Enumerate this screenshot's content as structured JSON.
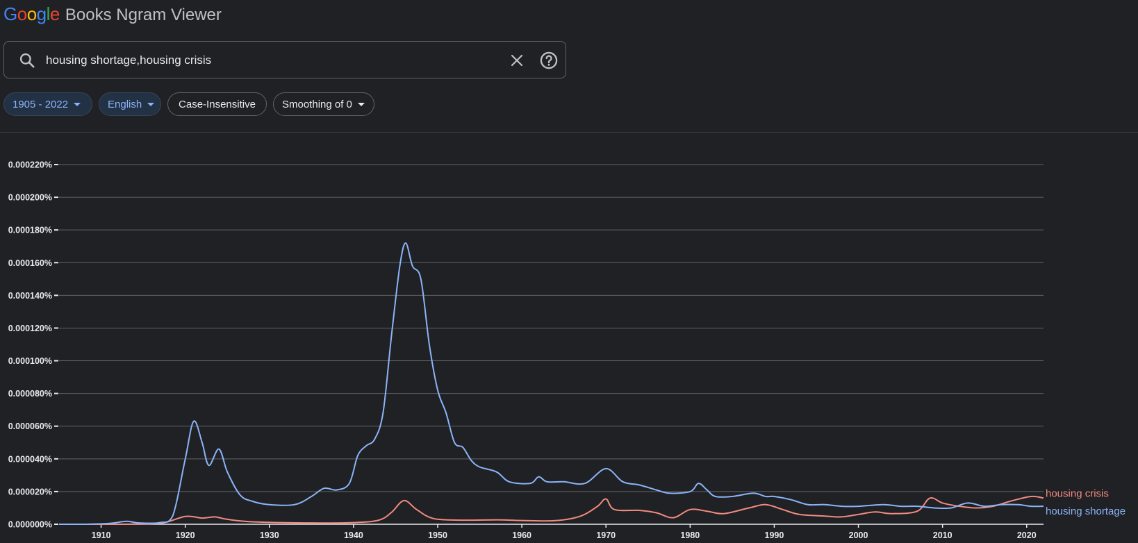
{
  "header": {
    "logo_letters": [
      "G",
      "o",
      "o",
      "g",
      "l",
      "e"
    ],
    "product_name": "Books Ngram Viewer"
  },
  "search": {
    "value": "housing shortage,housing crisis",
    "icon": "search-icon",
    "clear_icon": "close-icon",
    "help_icon": "help-icon"
  },
  "filters": {
    "year_range": "1905 - 2022",
    "corpus": "English",
    "case": "Case-Insensitive",
    "smoothing": "Smoothing of 0"
  },
  "chart_data": {
    "type": "line",
    "xlim": [
      1905,
      2022
    ],
    "ylim": [
      0,
      0.00022
    ],
    "x_ticks": [
      1910,
      1920,
      1930,
      1940,
      1950,
      1960,
      1970,
      1980,
      1990,
      2000,
      2010,
      2020
    ],
    "y_ticks": [
      {
        "value": 0,
        "label": "0.000000%"
      },
      {
        "value": 2e-05,
        "label": "0.000020%"
      },
      {
        "value": 4e-05,
        "label": "0.000040%"
      },
      {
        "value": 6e-05,
        "label": "0.000060%"
      },
      {
        "value": 8e-05,
        "label": "0.000080%"
      },
      {
        "value": 0.0001,
        "label": "0.000100%"
      },
      {
        "value": 0.00012,
        "label": "0.000120%"
      },
      {
        "value": 0.00014,
        "label": "0.000140%"
      },
      {
        "value": 0.00016,
        "label": "0.000160%"
      },
      {
        "value": 0.00018,
        "label": "0.000180%"
      },
      {
        "value": 0.0002,
        "label": "0.000200%"
      },
      {
        "value": 0.00022,
        "label": "0.000220%"
      }
    ],
    "grid": true,
    "legend": "right-end labels",
    "series": [
      {
        "name": "housing shortage",
        "color": "#8ab4f8",
        "points": [
          [
            1905,
            0
          ],
          [
            1908,
            0
          ],
          [
            1911,
            5e-07
          ],
          [
            1913,
            1.8e-06
          ],
          [
            1914.5,
            8e-07
          ],
          [
            1917,
            1e-06
          ],
          [
            1918.5,
            5e-06
          ],
          [
            1920,
            4e-05
          ],
          [
            1921,
            6.3e-05
          ],
          [
            1922,
            5e-05
          ],
          [
            1922.8,
            3.6e-05
          ],
          [
            1924,
            4.6e-05
          ],
          [
            1925,
            3.2e-05
          ],
          [
            1926.5,
            1.8e-05
          ],
          [
            1928,
            1.4e-05
          ],
          [
            1930,
            1.2e-05
          ],
          [
            1933,
            1.2e-05
          ],
          [
            1935,
            1.7e-05
          ],
          [
            1936.5,
            2.2e-05
          ],
          [
            1938,
            2.1e-05
          ],
          [
            1939.5,
            2.5e-05
          ],
          [
            1940.5,
            4.2e-05
          ],
          [
            1941.5,
            4.8e-05
          ],
          [
            1942.5,
            5.2e-05
          ],
          [
            1943.5,
            6.8e-05
          ],
          [
            1944.5,
            0.000115
          ],
          [
            1945.5,
            0.000158
          ],
          [
            1946.2,
            0.000172
          ],
          [
            1947,
            0.000158
          ],
          [
            1948,
            0.00015
          ],
          [
            1949,
            0.00011
          ],
          [
            1950,
            8.2e-05
          ],
          [
            1951,
            6.8e-05
          ],
          [
            1952,
            5e-05
          ],
          [
            1953,
            4.7e-05
          ],
          [
            1954,
            3.9e-05
          ],
          [
            1955,
            3.5e-05
          ],
          [
            1957,
            3.2e-05
          ],
          [
            1958.5,
            2.6e-05
          ],
          [
            1961,
            2.5e-05
          ],
          [
            1962,
            2.9e-05
          ],
          [
            1963,
            2.6e-05
          ],
          [
            1965,
            2.6e-05
          ],
          [
            1967.5,
            2.5e-05
          ],
          [
            1970,
            3.4e-05
          ],
          [
            1972,
            2.6e-05
          ],
          [
            1974,
            2.4e-05
          ],
          [
            1976,
            2.1e-05
          ],
          [
            1977.5,
            1.9e-05
          ],
          [
            1980,
            2e-05
          ],
          [
            1981,
            2.5e-05
          ],
          [
            1982,
            2.1e-05
          ],
          [
            1983,
            1.7e-05
          ],
          [
            1985,
            1.7e-05
          ],
          [
            1987.5,
            1.9e-05
          ],
          [
            1989,
            1.7e-05
          ],
          [
            1990,
            1.7e-05
          ],
          [
            1992,
            1.5e-05
          ],
          [
            1994,
            1.2e-05
          ],
          [
            1996,
            1.2e-05
          ],
          [
            1998,
            1.1e-05
          ],
          [
            2000,
            1.1e-05
          ],
          [
            2003,
            1.2e-05
          ],
          [
            2005,
            1.1e-05
          ],
          [
            2007,
            1.1e-05
          ],
          [
            2009,
            1e-05
          ],
          [
            2011,
            1e-05
          ],
          [
            2013,
            1.3e-05
          ],
          [
            2015,
            1.1e-05
          ],
          [
            2017,
            1.2e-05
          ],
          [
            2019,
            1.2e-05
          ],
          [
            2020.5,
            1.1e-05
          ],
          [
            2022,
            1.1e-05
          ]
        ]
      },
      {
        "name": "housing crisis",
        "color": "#f28b82",
        "points": [
          [
            1905,
            0
          ],
          [
            1912,
            0
          ],
          [
            1917,
            5e-07
          ],
          [
            1920,
            4.8e-06
          ],
          [
            1922,
            3.8e-06
          ],
          [
            1923.5,
            4.5e-06
          ],
          [
            1925,
            3e-06
          ],
          [
            1928,
            1.5e-06
          ],
          [
            1935,
            8e-07
          ],
          [
            1940,
            1e-06
          ],
          [
            1943,
            2.5e-06
          ],
          [
            1944.5,
            7.2e-06
          ],
          [
            1946,
            1.45e-05
          ],
          [
            1947.5,
            9e-06
          ],
          [
            1949.5,
            3.5e-06
          ],
          [
            1953,
            2.5e-06
          ],
          [
            1957,
            2.7e-06
          ],
          [
            1960,
            2.3e-06
          ],
          [
            1964,
            2.2e-06
          ],
          [
            1967,
            5e-06
          ],
          [
            1969,
            1.1e-05
          ],
          [
            1970,
            1.55e-05
          ],
          [
            1971,
            9e-06
          ],
          [
            1974,
            8.5e-06
          ],
          [
            1976,
            7e-06
          ],
          [
            1978,
            4e-06
          ],
          [
            1980,
            9e-06
          ],
          [
            1982,
            8e-06
          ],
          [
            1984,
            6.5e-06
          ],
          [
            1987,
            1e-05
          ],
          [
            1989,
            1.2e-05
          ],
          [
            1991,
            9e-06
          ],
          [
            1993,
            6e-06
          ],
          [
            1996,
            5e-06
          ],
          [
            1998,
            4.5e-06
          ],
          [
            2000,
            6e-06
          ],
          [
            2002,
            7.5e-06
          ],
          [
            2004,
            6.5e-06
          ],
          [
            2007,
            8e-06
          ],
          [
            2008.5,
            1.6e-05
          ],
          [
            2010,
            1.3e-05
          ],
          [
            2012,
            1.1e-05
          ],
          [
            2014,
            1e-05
          ],
          [
            2016,
            1.1e-05
          ],
          [
            2018,
            1.4e-05
          ],
          [
            2020.5,
            1.7e-05
          ],
          [
            2022,
            1.6e-05
          ]
        ]
      }
    ]
  }
}
